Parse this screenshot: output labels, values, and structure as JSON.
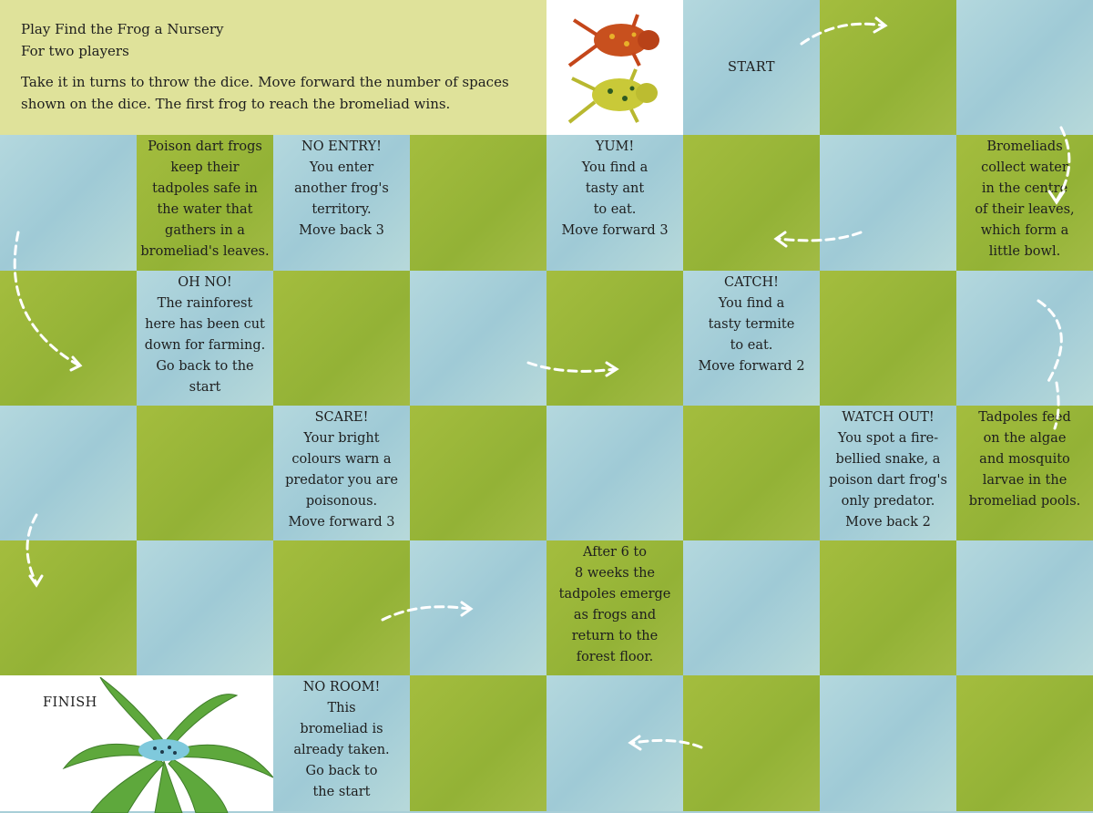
{
  "intro": {
    "title": "Play Find the Frog a Nursery",
    "players": "For two players",
    "rules_line1": "Take it in turns to throw the dice. Move forward the number of spaces",
    "rules_line2": "shown on the dice. The first frog to reach the bromeliad wins."
  },
  "start_label": "START",
  "finish_label": "FINISH",
  "colors": {
    "green_square": "#9cb83a",
    "blue_square": "#a9cfd8",
    "intro_bg": "#dfe29a",
    "arrow": "#ffffff"
  },
  "squares": {
    "poison_dart": [
      "Poison dart frogs",
      "keep their",
      "tadpoles safe in",
      "the water that",
      "gathers in a",
      "bromeliad's leaves."
    ],
    "no_entry": [
      "NO ENTRY!",
      "You enter",
      "another frog's",
      "territory.",
      "Move back 3"
    ],
    "yum": [
      "YUM!",
      "You find a",
      "tasty ant",
      "to eat.",
      "Move forward 3"
    ],
    "bromeliads": [
      "Bromeliads",
      "collect water",
      "in the centre",
      "of their leaves,",
      "which form a",
      "little bowl."
    ],
    "oh_no": [
      "OH NO!",
      "The rainforest",
      "here has been cut",
      "down for farming.",
      "Go back to the",
      "start"
    ],
    "catch": [
      "CATCH!",
      "You find a",
      "tasty termite",
      "to eat.",
      "Move forward 2"
    ],
    "scare": [
      "SCARE!",
      "Your bright",
      "colours warn a",
      "predator you are",
      "poisonous.",
      "Move forward 3"
    ],
    "watch_out": [
      "WATCH OUT!",
      "You spot a fire-",
      "bellied snake, a",
      "poison dart frog's",
      "only predator.",
      "Move back 2"
    ],
    "tadpoles_feed": [
      "Tadpoles feed",
      "on the algae",
      "and mosquito",
      "larvae in the",
      "bromeliad pools."
    ],
    "after_weeks": [
      "After 6 to",
      "8 weeks the",
      "tadpoles emerge",
      "as frogs and",
      "return to the",
      "forest floor."
    ],
    "no_room": [
      "NO ROOM!",
      "This",
      "bromeliad is",
      "already taken.",
      "Go back to",
      "the start"
    ]
  }
}
